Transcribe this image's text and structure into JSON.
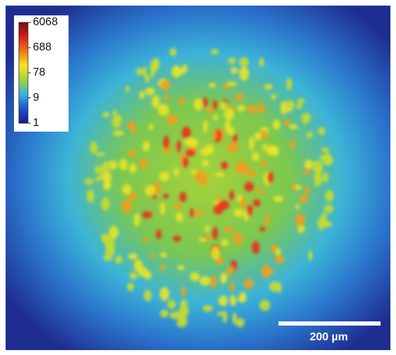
{
  "colorbar": {
    "ticks": [
      6068,
      688,
      78,
      9,
      1
    ],
    "scale": "log",
    "colormap": [
      "#1c1a8c",
      "#2250c8",
      "#32b4e6",
      "#9ed23c",
      "#f5e61e",
      "#f07814",
      "#d21e1e",
      "#7a0a0a"
    ]
  },
  "scale_bar": {
    "label": "200 µm"
  }
}
